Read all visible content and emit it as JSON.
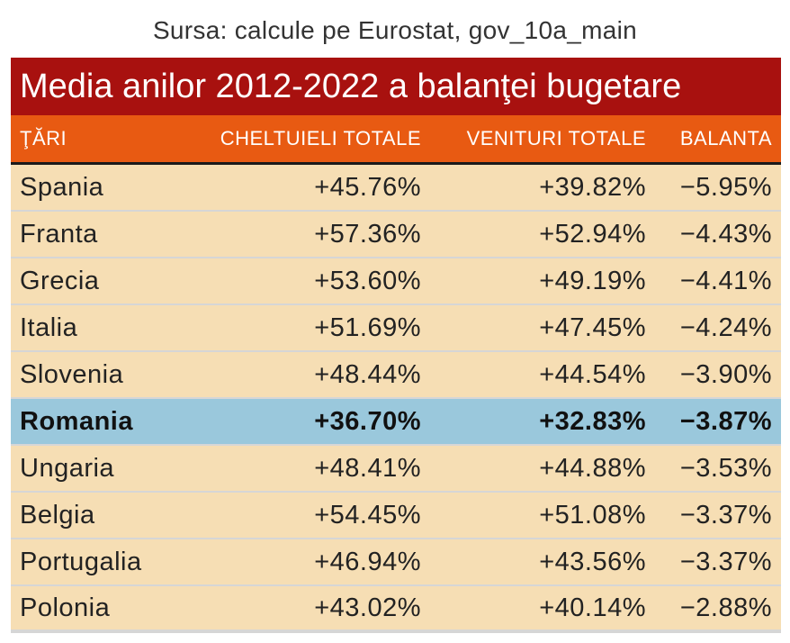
{
  "source": "Sursa: calcule pe Eurostat, gov_10a_main",
  "colors": {
    "title_bg": "#a8110f",
    "header_bg": "#e85a12",
    "row_bg": "#f6deb4",
    "highlight_bg": "#9ac8dc"
  },
  "chart_data": {
    "type": "table",
    "title": "Media anilor 2012-2022 a balanţei bugetare",
    "columns": [
      "ŢĂRI",
      "CHELTUIELI TOTALE",
      "VENITURI TOTALE",
      "BALANTA"
    ],
    "rows": [
      {
        "country": "Spania",
        "expenditure": "+45.76%",
        "revenue": "+39.82%",
        "balance": "−5.95%",
        "highlight": false
      },
      {
        "country": "Franta",
        "expenditure": "+57.36%",
        "revenue": "+52.94%",
        "balance": "−4.43%",
        "highlight": false
      },
      {
        "country": "Grecia",
        "expenditure": "+53.60%",
        "revenue": "+49.19%",
        "balance": "−4.41%",
        "highlight": false
      },
      {
        "country": "Italia",
        "expenditure": "+51.69%",
        "revenue": "+47.45%",
        "balance": "−4.24%",
        "highlight": false
      },
      {
        "country": "Slovenia",
        "expenditure": "+48.44%",
        "revenue": "+44.54%",
        "balance": "−3.90%",
        "highlight": false
      },
      {
        "country": "Romania",
        "expenditure": "+36.70%",
        "revenue": "+32.83%",
        "balance": "−3.87%",
        "highlight": true
      },
      {
        "country": "Ungaria",
        "expenditure": "+48.41%",
        "revenue": "+44.88%",
        "balance": "−3.53%",
        "highlight": false
      },
      {
        "country": "Belgia",
        "expenditure": "+54.45%",
        "revenue": "+51.08%",
        "balance": "−3.37%",
        "highlight": false
      },
      {
        "country": "Portugalia",
        "expenditure": "+46.94%",
        "revenue": "+43.56%",
        "balance": "−3.37%",
        "highlight": false
      },
      {
        "country": "Polonia",
        "expenditure": "+43.02%",
        "revenue": "+40.14%",
        "balance": "−2.88%",
        "highlight": false
      }
    ]
  }
}
